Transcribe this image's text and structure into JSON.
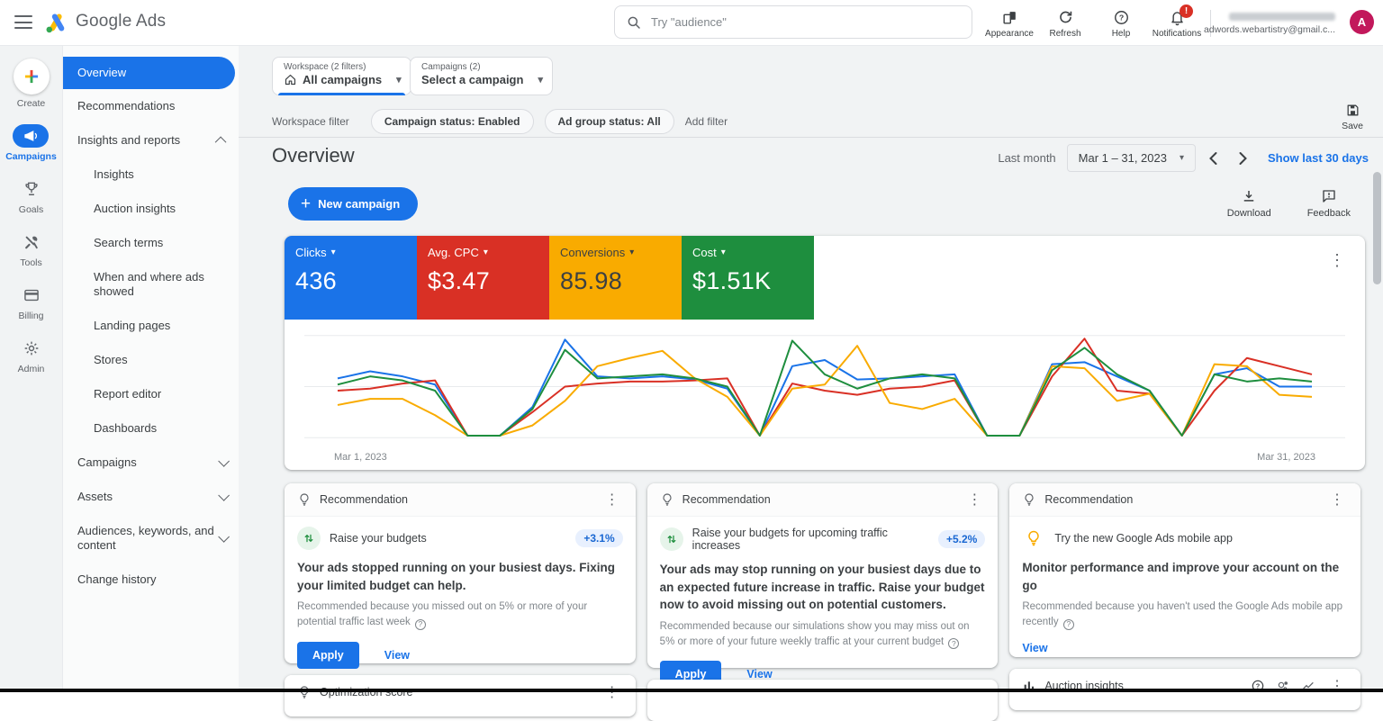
{
  "topbar": {
    "product_name": "Google Ads",
    "search_placeholder": "Try \"audience\"",
    "actions": [
      {
        "id": "appearance",
        "icon": "appearance",
        "label": "Appearance"
      },
      {
        "id": "refresh",
        "icon": "refresh",
        "label": "Refresh"
      },
      {
        "id": "help",
        "icon": "help",
        "label": "Help"
      },
      {
        "id": "notifications",
        "icon": "bell",
        "label": "Notifications",
        "badge": "!"
      }
    ],
    "account": {
      "email": "adwords.webartistry@gmail.c...",
      "avatar_letter": "A"
    }
  },
  "rail": {
    "items": [
      {
        "id": "create",
        "label": "Create",
        "icon": "plus-multicolor",
        "active": false
      },
      {
        "id": "campaigns",
        "label": "Campaigns",
        "icon": "megaphone",
        "active": true
      },
      {
        "id": "goals",
        "label": "Goals",
        "icon": "trophy",
        "active": false
      },
      {
        "id": "tools",
        "label": "Tools",
        "icon": "tools",
        "active": false
      },
      {
        "id": "billing",
        "label": "Billing",
        "icon": "credit-card",
        "active": false
      },
      {
        "id": "admin",
        "label": "Admin",
        "icon": "gear",
        "active": false
      }
    ]
  },
  "sidebar": {
    "items": [
      {
        "label": "Overview",
        "selected": true,
        "indent": 0,
        "chevron": null
      },
      {
        "label": "Recommendations",
        "selected": false,
        "indent": 0,
        "chevron": null
      },
      {
        "label": "Insights and reports",
        "selected": false,
        "indent": 0,
        "chevron": "up"
      },
      {
        "label": "Insights",
        "selected": false,
        "indent": 1,
        "chevron": null
      },
      {
        "label": "Auction insights",
        "selected": false,
        "indent": 1,
        "chevron": null
      },
      {
        "label": "Search terms",
        "selected": false,
        "indent": 1,
        "chevron": null
      },
      {
        "label": "When and where ads showed",
        "selected": false,
        "indent": 1,
        "chevron": null
      },
      {
        "label": "Landing pages",
        "selected": false,
        "indent": 1,
        "chevron": null
      },
      {
        "label": "Stores",
        "selected": false,
        "indent": 1,
        "chevron": null
      },
      {
        "label": "Report editor",
        "selected": false,
        "indent": 1,
        "chevron": null
      },
      {
        "label": "Dashboards",
        "selected": false,
        "indent": 1,
        "chevron": null
      },
      {
        "label": "Campaigns",
        "selected": false,
        "indent": 0,
        "chevron": "down"
      },
      {
        "label": "Assets",
        "selected": false,
        "indent": 0,
        "chevron": "down"
      },
      {
        "label": "Audiences, keywords, and content",
        "selected": false,
        "indent": 0,
        "chevron": "down"
      },
      {
        "label": "Change history",
        "selected": false,
        "indent": 0,
        "chevron": null
      }
    ]
  },
  "filters": {
    "workspace_selector": {
      "label": "Workspace (2 filters)",
      "value": "All campaigns"
    },
    "campaign_selector": {
      "label": "Campaigns (2)",
      "value": "Select a campaign"
    },
    "row_label": "Workspace filter",
    "chips": [
      "Campaign status: Enabled",
      "Ad group status: All"
    ],
    "add_filter_label": "Add filter",
    "save_label": "Save"
  },
  "overview": {
    "title": "Overview",
    "date_context": "Last month",
    "date_range": "Mar 1 – 31, 2023",
    "show_last_label": "Show last 30 days",
    "new_campaign_label": "New campaign",
    "download_label": "Download",
    "feedback_label": "Feedback"
  },
  "scorecards": [
    {
      "label": "Clicks",
      "value": "436",
      "bg": "#1a73e8",
      "text": "#ffffff"
    },
    {
      "label": "Avg. CPC",
      "value": "$3.47",
      "bg": "#d93025",
      "text": "#ffffff"
    },
    {
      "label": "Conversions",
      "value": "85.98",
      "bg": "#f9ab00",
      "text": "#3c4043"
    },
    {
      "label": "Cost",
      "value": "$1.51K",
      "bg": "#1e8e3e",
      "text": "#ffffff"
    }
  ],
  "chart_data": {
    "type": "line",
    "x_start_label": "Mar 1, 2023",
    "x_end_label": "Mar 31, 2023",
    "x_range_days": 31,
    "grid": true,
    "ylim": [
      0,
      100
    ],
    "series": [
      {
        "name": "Clicks",
        "color": "#1a73e8",
        "values": [
          58,
          65,
          60,
          52,
          2,
          2,
          30,
          96,
          60,
          58,
          60,
          57,
          48,
          2,
          70,
          76,
          57,
          58,
          60,
          62,
          2,
          2,
          72,
          74,
          60,
          46,
          2,
          62,
          68,
          50,
          50
        ]
      },
      {
        "name": "Avg. CPC",
        "color": "#d93025",
        "values": [
          46,
          48,
          53,
          56,
          2,
          2,
          25,
          50,
          53,
          55,
          55,
          56,
          58,
          2,
          53,
          46,
          42,
          48,
          50,
          56,
          2,
          2,
          60,
          97,
          46,
          43,
          2,
          46,
          78,
          70,
          62
        ]
      },
      {
        "name": "Conversions",
        "color": "#f9ab00",
        "values": [
          32,
          38,
          38,
          22,
          2,
          2,
          12,
          36,
          70,
          78,
          85,
          58,
          40,
          2,
          48,
          52,
          90,
          34,
          28,
          38,
          2,
          2,
          70,
          68,
          36,
          43,
          2,
          72,
          70,
          42,
          40
        ]
      },
      {
        "name": "Cost",
        "color": "#1e8e3e",
        "values": [
          52,
          60,
          56,
          46,
          2,
          2,
          28,
          86,
          58,
          60,
          62,
          58,
          50,
          2,
          95,
          62,
          48,
          58,
          62,
          58,
          2,
          2,
          66,
          88,
          62,
          46,
          2,
          62,
          55,
          58,
          55
        ]
      }
    ]
  },
  "recommendations": [
    {
      "header": "Recommendation",
      "icon": "budget-arrows",
      "title": "Raise your budgets",
      "badge": "+3.1%",
      "headline": "Your ads stopped running on your busiest days. Fixing your limited budget can help.",
      "note": "Recommended because you missed out on 5% or more of your potential traffic last week",
      "primary_action": "Apply",
      "secondary_action": "View"
    },
    {
      "header": "Recommendation",
      "icon": "budget-arrows",
      "title": "Raise your budgets for upcoming traffic increases",
      "badge": "+5.2%",
      "headline": "Your ads may stop running on your busiest days due to an expected future increase in traffic. Raise your budget now to avoid missing out on potential customers.",
      "note": "Recommended because our simulations show you may miss out on 5% or more of your future weekly traffic at your current budget",
      "primary_action": "Apply",
      "secondary_action": "View"
    },
    {
      "header": "Recommendation",
      "icon": "bulb-yellow",
      "title": "Try the new Google Ads mobile app",
      "badge": null,
      "headline": "Monitor performance and improve your account on the go",
      "note": "Recommended because you haven't used the Google Ads mobile app recently",
      "primary_action": null,
      "secondary_action": "View"
    }
  ],
  "partials": {
    "optimization_score": "Optimization score",
    "auction_insights": "Auction insights"
  },
  "colors": {
    "blue": "#1a73e8",
    "red": "#d93025",
    "yellow": "#f9ab00",
    "green": "#1e8e3e",
    "link": "#1a73e8"
  }
}
